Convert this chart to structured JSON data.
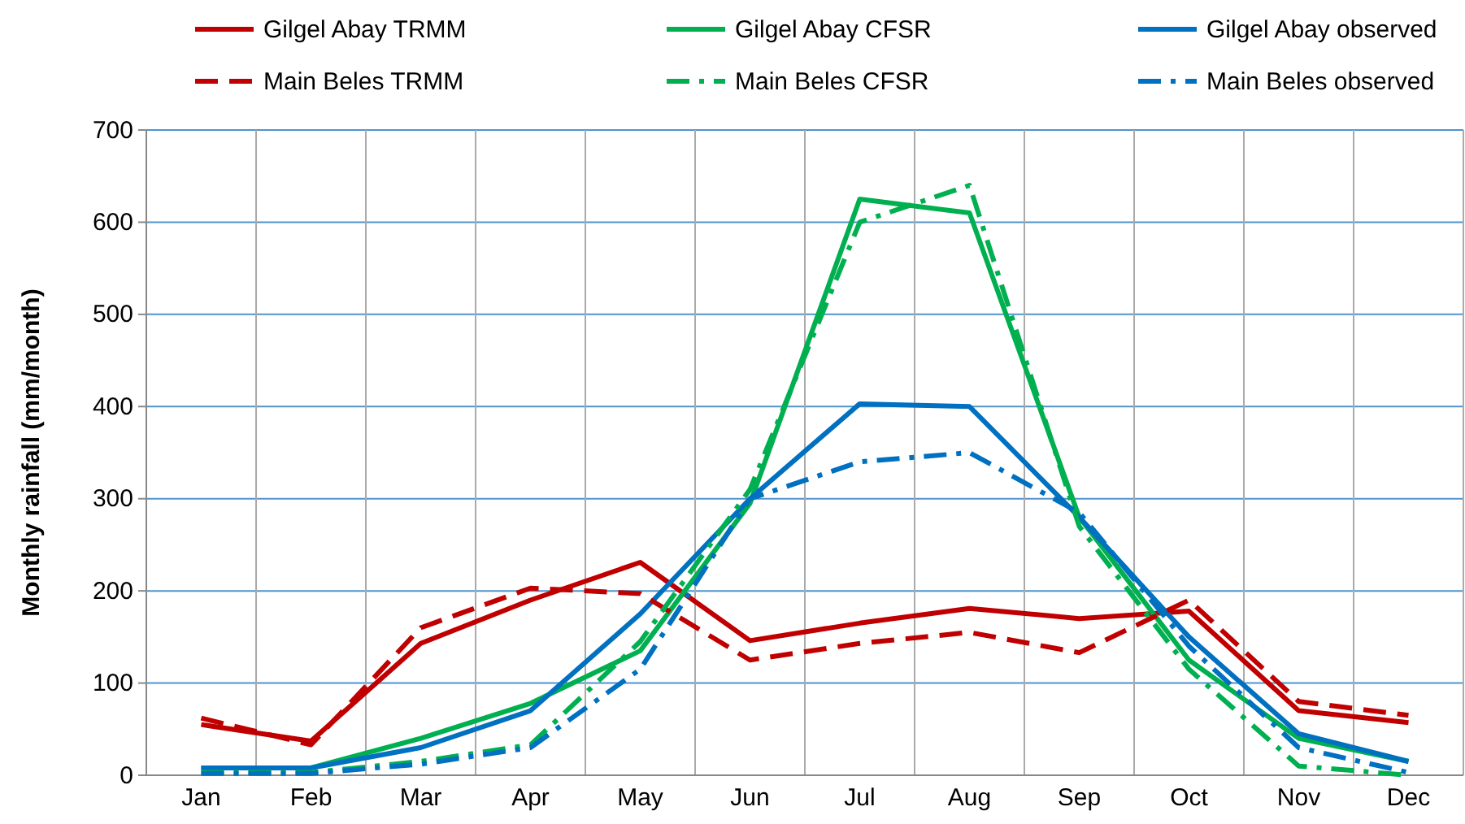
{
  "chart_data": {
    "type": "line",
    "ylabel": "Monthly rainfall (mm/month)",
    "categories": [
      "Jan",
      "Feb",
      "Mar",
      "Apr",
      "May",
      "Jun",
      "Jul",
      "Aug",
      "Sep",
      "Oct",
      "Nov",
      "Dec"
    ],
    "series": [
      {
        "name": "Gilgel Abay TRMM",
        "color": "#c00000",
        "line_style": "solid",
        "values": [
          55,
          37,
          143,
          190,
          231,
          146,
          165,
          181,
          170,
          178,
          70,
          57
        ]
      },
      {
        "name": "Gilgel Abay CFSR",
        "color": "#00b050",
        "line_style": "solid",
        "values": [
          8,
          8,
          40,
          78,
          135,
          295,
          625,
          610,
          280,
          125,
          40,
          15
        ]
      },
      {
        "name": "Gilgel Abay observed",
        "color": "#0070c0",
        "line_style": "solid",
        "values": [
          8,
          8,
          30,
          70,
          175,
          300,
          403,
          400,
          280,
          150,
          45,
          15
        ]
      },
      {
        "name": "Main Beles TRMM",
        "color": "#c00000",
        "line_style": "dashed",
        "values": [
          62,
          33,
          160,
          203,
          197,
          125,
          143,
          155,
          133,
          190,
          80,
          65
        ]
      },
      {
        "name": "Main Beles CFSR",
        "color": "#00b050",
        "line_style": "dashdot",
        "values": [
          3,
          3,
          15,
          33,
          145,
          310,
          600,
          640,
          270,
          115,
          10,
          0
        ]
      },
      {
        "name": "Main Beles observed",
        "color": "#0070c0",
        "line_style": "dashdot",
        "values": [
          2,
          2,
          12,
          30,
          115,
          300,
          340,
          350,
          285,
          140,
          30,
          3
        ]
      }
    ],
    "ylim": [
      0,
      700
    ],
    "yticks": [
      0,
      100,
      200,
      300,
      400,
      500,
      600,
      700
    ],
    "grid": true,
    "legend": "top",
    "marker": "none"
  }
}
